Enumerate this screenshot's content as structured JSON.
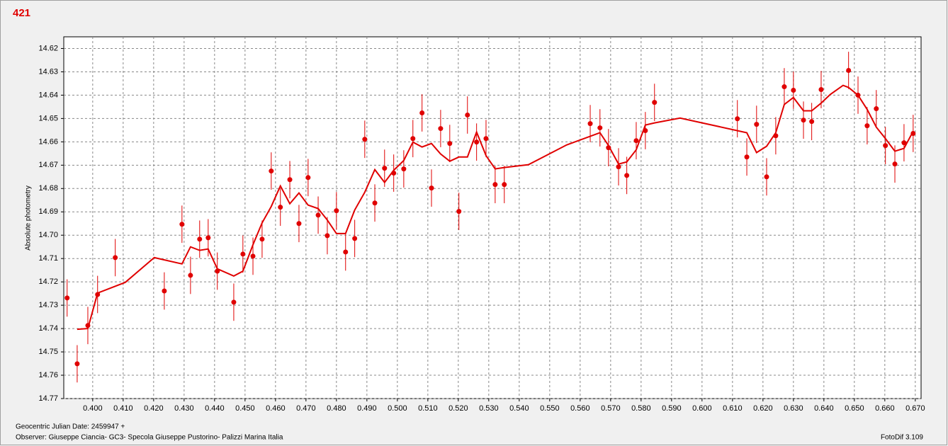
{
  "chart_data": {
    "type": "scatter",
    "title": "421",
    "y_label": "Absolute photometry",
    "x_note": "Geocentric Julian Date: 2459947 +",
    "observer": "Observer: Giuseppe Ciancia- GC3- Specola Giuseppe Pustorino- Palizzi Marina Italia",
    "software": "FotoDif 3.109",
    "grid": true,
    "error": 0.008,
    "xlim": [
      0.3905,
      0.6719
    ],
    "ylim": [
      14.77,
      14.615
    ],
    "xticks": [
      {
        "value": 0.4,
        "label": "0.400"
      },
      {
        "value": 0.41,
        "label": "0.410"
      },
      {
        "value": 0.42,
        "label": "0.420"
      },
      {
        "value": 0.43,
        "label": "0.430"
      },
      {
        "value": 0.44,
        "label": "0.440"
      },
      {
        "value": 0.45,
        "label": "0.450"
      },
      {
        "value": 0.46,
        "label": "0.460"
      },
      {
        "value": 0.47,
        "label": "0.470"
      },
      {
        "value": 0.48,
        "label": "0.480"
      },
      {
        "value": 0.49,
        "label": "0.490"
      },
      {
        "value": 0.5,
        "label": "0.500"
      },
      {
        "value": 0.51,
        "label": "0.510"
      },
      {
        "value": 0.52,
        "label": "0.520"
      },
      {
        "value": 0.53,
        "label": "0.530"
      },
      {
        "value": 0.54,
        "label": "0.540"
      },
      {
        "value": 0.55,
        "label": "0.550"
      },
      {
        "value": 0.56,
        "label": "0.560"
      },
      {
        "value": 0.57,
        "label": "0.570"
      },
      {
        "value": 0.58,
        "label": "0.580"
      },
      {
        "value": 0.59,
        "label": "0.590"
      },
      {
        "value": 0.6,
        "label": "0.600"
      },
      {
        "value": 0.61,
        "label": "0.610"
      },
      {
        "value": 0.62,
        "label": "0.620"
      },
      {
        "value": 0.63,
        "label": "0.630"
      },
      {
        "value": 0.64,
        "label": "0.640"
      },
      {
        "value": 0.65,
        "label": "0.650"
      },
      {
        "value": 0.66,
        "label": "0.660"
      },
      {
        "value": 0.67,
        "label": "0.670"
      }
    ],
    "yticks": [
      14.62,
      14.63,
      14.64,
      14.65,
      14.66,
      14.67,
      14.68,
      14.69,
      {
        "value": 14.7,
        "label": "14.70"
      },
      14.71,
      14.72,
      14.73,
      14.74,
      14.75,
      14.76,
      14.77
    ],
    "series": [
      {
        "type": "errorbar",
        "color": "#e00000",
        "x": [
          0.3916,
          0.3949,
          0.3984,
          0.4016,
          0.4074,
          0.4235,
          0.4293,
          0.4321,
          0.4351,
          0.4379,
          0.4409,
          0.4463,
          0.4493,
          0.4526,
          0.4556,
          0.4586,
          0.4616,
          0.4647,
          0.4677,
          0.4707,
          0.474,
          0.477,
          0.48,
          0.483,
          0.486,
          0.4893,
          0.4926,
          0.4958,
          0.4988,
          0.5021,
          0.5051,
          0.5081,
          0.5112,
          0.5142,
          0.5172,
          0.5202,
          0.523,
          0.526,
          0.5291,
          0.5321,
          0.5351,
          0.5633,
          0.5665,
          0.5693,
          0.5726,
          0.5753,
          0.5784,
          0.5814,
          0.5844,
          0.6116,
          0.6147,
          0.6179,
          0.6212,
          0.6242,
          0.627,
          0.63,
          0.6333,
          0.636,
          0.6391,
          0.6481,
          0.6512,
          0.6542,
          0.6572,
          0.6602,
          0.6633,
          0.6663,
          0.6693
        ],
        "values": [
          14.7269,
          14.7551,
          14.7387,
          14.7254,
          14.7096,
          14.7239,
          14.6953,
          14.7172,
          14.7017,
          14.7011,
          14.7154,
          14.7287,
          14.7081,
          14.709,
          14.7017,
          14.6725,
          14.688,
          14.6762,
          14.695,
          14.6753,
          14.6914,
          14.7002,
          14.6895,
          14.7072,
          14.7014,
          14.6589,
          14.6862,
          14.6713,
          14.6734,
          14.6716,
          14.6586,
          14.6476,
          14.6798,
          14.6543,
          14.6607,
          14.6898,
          14.6485,
          14.6601,
          14.6586,
          14.6783,
          14.6783,
          14.6522,
          14.654,
          14.6625,
          14.6707,
          14.6744,
          14.6595,
          14.6552,
          14.6431,
          14.6501,
          14.6665,
          14.6525,
          14.675,
          14.6574,
          14.6364,
          14.6379,
          14.6507,
          14.6513,
          14.6376,
          14.6294,
          14.64,
          14.6531,
          14.6458,
          14.6616,
          14.6695,
          14.6604,
          14.6564
        ]
      },
      {
        "type": "line",
        "color": "#e00000",
        "x": [
          0.3949,
          0.3984,
          0.4016,
          0.4107,
          0.4202,
          0.4293,
          0.4321,
          0.4351,
          0.4379,
          0.4409,
          0.4463,
          0.4493,
          0.4526,
          0.4556,
          0.4586,
          0.4616,
          0.4647,
          0.4677,
          0.4707,
          0.474,
          0.477,
          0.48,
          0.483,
          0.486,
          0.4893,
          0.4926,
          0.4958,
          0.4988,
          0.5021,
          0.5051,
          0.5081,
          0.5112,
          0.5142,
          0.5172,
          0.5202,
          0.523,
          0.526,
          0.5291,
          0.5321,
          0.5351,
          0.543,
          0.5556,
          0.5665,
          0.5693,
          0.5726,
          0.5753,
          0.5784,
          0.5814,
          0.5844,
          0.5928,
          0.6147,
          0.6179,
          0.6212,
          0.6242,
          0.627,
          0.63,
          0.6333,
          0.636,
          0.6391,
          0.6421,
          0.6463,
          0.6481,
          0.6512,
          0.6542,
          0.6572,
          0.6602,
          0.6633,
          0.6663,
          0.6693
        ],
        "values": [
          14.7403,
          14.74,
          14.7248,
          14.7202,
          14.7096,
          14.7123,
          14.705,
          14.7065,
          14.7059,
          14.7144,
          14.7175,
          14.7154,
          14.7041,
          14.6947,
          14.6877,
          14.6789,
          14.6865,
          14.6819,
          14.6871,
          14.6886,
          14.6935,
          14.6993,
          14.6993,
          14.6892,
          14.6816,
          14.6719,
          14.6774,
          14.6722,
          14.668,
          14.6601,
          14.6622,
          14.6607,
          14.6652,
          14.6683,
          14.6665,
          14.6665,
          14.6558,
          14.6659,
          14.6716,
          14.671,
          14.6698,
          14.6613,
          14.6561,
          14.6616,
          14.6695,
          14.6686,
          14.6634,
          14.6528,
          14.6519,
          14.6498,
          14.6561,
          14.6646,
          14.6619,
          14.6561,
          14.644,
          14.641,
          14.6467,
          14.6467,
          14.6434,
          14.6397,
          14.6358,
          14.6367,
          14.64,
          14.6461,
          14.6537,
          14.6586,
          14.664,
          14.6628,
          14.6555
        ]
      }
    ]
  }
}
